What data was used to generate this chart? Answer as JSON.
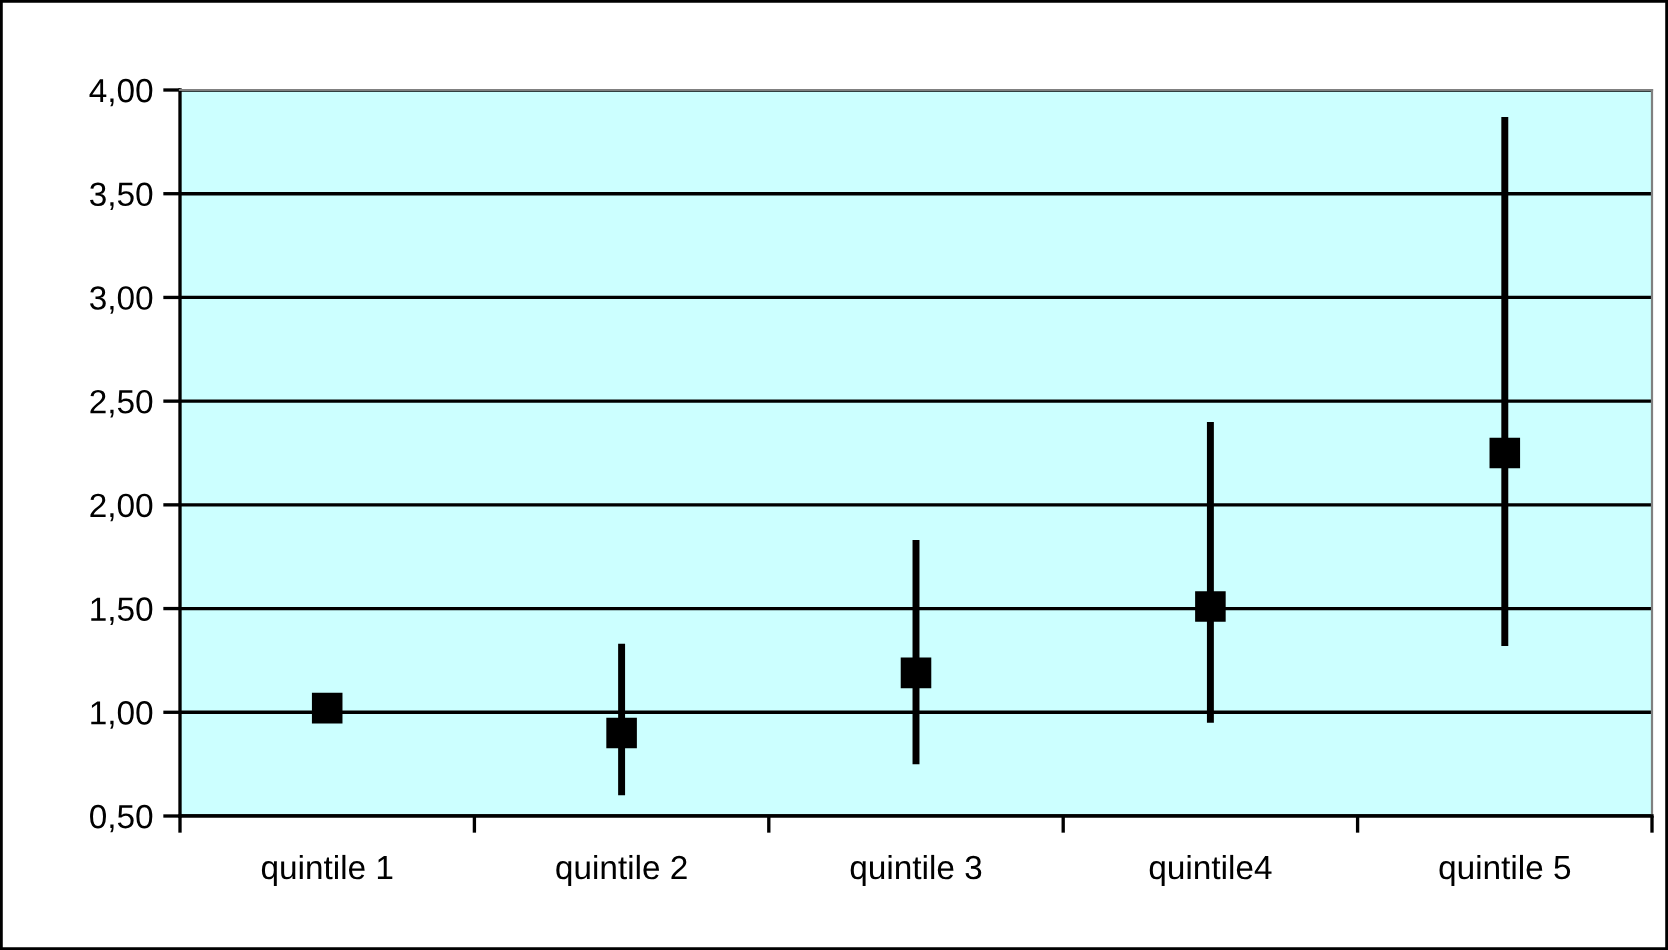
{
  "chart_data": {
    "type": "scatter",
    "categories": [
      "quintile 1",
      "quintile 2",
      "quintile 3",
      "quintile4",
      "quintile 5"
    ],
    "series": [
      {
        "color": "#000000",
        "values": [
          1.02,
          0.9,
          1.19,
          1.51,
          2.25
        ],
        "errors": [
          null,
          [
            0.6,
            1.33
          ],
          [
            0.75,
            1.83
          ],
          [
            0.95,
            2.4
          ],
          [
            1.32,
            3.87
          ]
        ]
      }
    ],
    "marker": "square",
    "ylim": [
      0.5,
      4.0
    ],
    "yticks": [
      {
        "value": 0.5,
        "label": "0,50"
      },
      {
        "value": 1.0,
        "label": "1,00"
      },
      {
        "value": 1.5,
        "label": "1,50"
      },
      {
        "value": 2.0,
        "label": "2,00"
      },
      {
        "value": 2.5,
        "label": "2,50"
      },
      {
        "value": 3.0,
        "label": "3,00"
      },
      {
        "value": 3.5,
        "label": "3,50"
      },
      {
        "value": 4.0,
        "label": "4,00"
      }
    ],
    "grid": "y",
    "legend": false
  }
}
